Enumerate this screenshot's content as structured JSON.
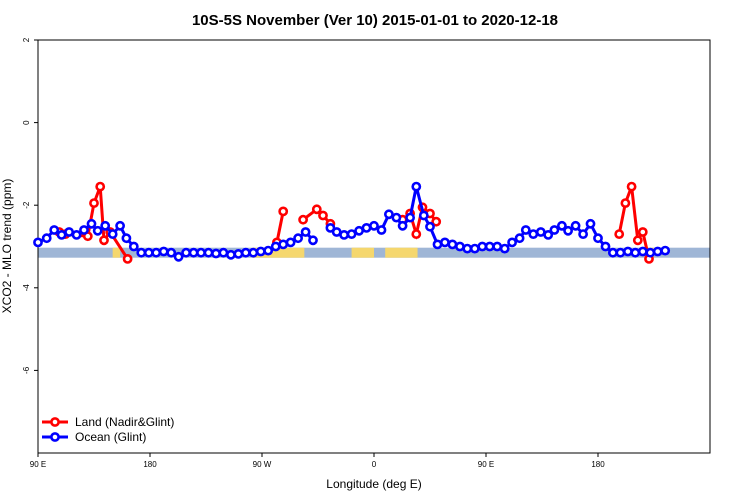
{
  "chart_data": {
    "type": "line",
    "title": "10S-5S November (Ver 10)   2015-01-01 to 2020-12-18",
    "xlabel": "Longitude (deg E)",
    "ylabel": "XCO2 - MLO trend (ppm)",
    "xlim": [
      0,
      540
    ],
    "ylim": [
      -8,
      2
    ],
    "x_ticks": [
      {
        "value": 0,
        "label": "90 E"
      },
      {
        "value": 90,
        "label": "180"
      },
      {
        "value": 180,
        "label": "90 W"
      },
      {
        "value": 270,
        "label": "0"
      },
      {
        "value": 360,
        "label": "90 E"
      },
      {
        "value": 450,
        "label": "180"
      }
    ],
    "y_ticks": [
      {
        "value": 2,
        "label": "2"
      },
      {
        "value": 0,
        "label": "0"
      },
      {
        "value": -2,
        "label": "-2"
      },
      {
        "value": -4,
        "label": "-4"
      },
      {
        "value": -6,
        "label": "-6"
      }
    ],
    "legend_position": "bottom-left",
    "grid": false,
    "land_band": {
      "y": -3.15,
      "color": "#f5d76e",
      "ocean_color": "#9fb6d6"
    },
    "series": [
      {
        "name": "Land (Nadir&Glint)",
        "color": "#ff0000",
        "segments": [
          [
            [
              17,
              -2.65
            ],
            [
              22,
              -2.7
            ],
            [
              40,
              -2.75
            ],
            [
              45,
              -1.95
            ],
            [
              50,
              -1.55
            ],
            [
              53,
              -2.85
            ],
            [
              58,
              -2.65
            ],
            [
              72,
              -3.3
            ]
          ],
          [
            [
              192,
              -2.9
            ],
            [
              197,
              -2.15
            ]
          ],
          [
            [
              213,
              -2.35
            ],
            [
              224,
              -2.1
            ],
            [
              229,
              -2.25
            ],
            [
              235,
              -2.45
            ]
          ],
          [
            [
              293,
              -2.35
            ],
            [
              299,
              -2.2
            ],
            [
              304,
              -2.7
            ],
            [
              309,
              -2.05
            ],
            [
              315,
              -2.2
            ],
            [
              320,
              -2.4
            ]
          ],
          [
            [
              467,
              -2.7
            ],
            [
              472,
              -1.95
            ],
            [
              477,
              -1.55
            ],
            [
              482,
              -2.85
            ],
            [
              486,
              -2.65
            ],
            [
              491,
              -3.3
            ]
          ]
        ]
      },
      {
        "name": "Ocean (Glint)",
        "color": "#0000ff",
        "segments": [
          [
            [
              0,
              -2.9
            ],
            [
              7,
              -2.8
            ],
            [
              13,
              -2.6
            ],
            [
              19,
              -2.72
            ],
            [
              25,
              -2.65
            ],
            [
              31,
              -2.72
            ],
            [
              37,
              -2.6
            ],
            [
              43,
              -2.45
            ],
            [
              48,
              -2.62
            ],
            [
              54,
              -2.5
            ],
            [
              60,
              -2.7
            ],
            [
              66,
              -2.5
            ],
            [
              71,
              -2.8
            ],
            [
              77,
              -3.0
            ],
            [
              83,
              -3.15
            ],
            [
              89,
              -3.15
            ],
            [
              95,
              -3.15
            ],
            [
              101,
              -3.12
            ],
            [
              107,
              -3.15
            ],
            [
              113,
              -3.25
            ],
            [
              119,
              -3.15
            ],
            [
              125,
              -3.15
            ],
            [
              131,
              -3.15
            ],
            [
              137,
              -3.15
            ],
            [
              143,
              -3.17
            ],
            [
              149,
              -3.15
            ],
            [
              155,
              -3.2
            ],
            [
              161,
              -3.18
            ],
            [
              167,
              -3.15
            ],
            [
              173,
              -3.15
            ],
            [
              179,
              -3.12
            ],
            [
              185,
              -3.1
            ],
            [
              191,
              -3.0
            ],
            [
              197,
              -2.95
            ],
            [
              203,
              -2.9
            ],
            [
              209,
              -2.8
            ],
            [
              215,
              -2.65
            ],
            [
              221,
              -2.85
            ]
          ],
          [
            [
              235,
              -2.55
            ],
            [
              240,
              -2.65
            ],
            [
              246,
              -2.72
            ],
            [
              252,
              -2.7
            ],
            [
              258,
              -2.62
            ],
            [
              264,
              -2.55
            ],
            [
              270,
              -2.5
            ],
            [
              276,
              -2.6
            ],
            [
              282,
              -2.22
            ],
            [
              288,
              -2.3
            ],
            [
              293,
              -2.5
            ],
            [
              299,
              -2.3
            ],
            [
              304,
              -1.55
            ],
            [
              310,
              -2.25
            ],
            [
              315,
              -2.52
            ],
            [
              321,
              -2.95
            ],
            [
              327,
              -2.9
            ],
            [
              333,
              -2.95
            ],
            [
              339,
              -3.0
            ],
            [
              345,
              -3.05
            ],
            [
              351,
              -3.05
            ],
            [
              357,
              -3.0
            ],
            [
              363,
              -3.0
            ],
            [
              369,
              -3.0
            ],
            [
              375,
              -3.05
            ],
            [
              381,
              -2.9
            ],
            [
              387,
              -2.8
            ],
            [
              392,
              -2.6
            ],
            [
              398,
              -2.7
            ],
            [
              404,
              -2.65
            ],
            [
              410,
              -2.72
            ],
            [
              415,
              -2.6
            ],
            [
              421,
              -2.5
            ],
            [
              426,
              -2.62
            ],
            [
              432,
              -2.5
            ],
            [
              438,
              -2.7
            ],
            [
              444,
              -2.45
            ],
            [
              450,
              -2.8
            ],
            [
              456,
              -3.0
            ],
            [
              462,
              -3.15
            ],
            [
              468,
              -3.15
            ],
            [
              474,
              -3.12
            ],
            [
              480,
              -3.15
            ],
            [
              486,
              -3.12
            ],
            [
              492,
              -3.15
            ],
            [
              498,
              -3.12
            ],
            [
              504,
              -3.1
            ]
          ]
        ]
      }
    ]
  }
}
